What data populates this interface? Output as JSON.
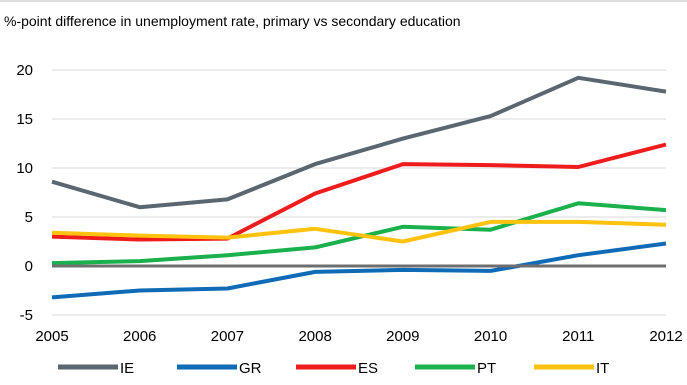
{
  "chart_data": {
    "type": "line",
    "title": "%-point difference in unemployment rate, primary vs secondary education",
    "xlabel": "",
    "ylabel": "",
    "x": [
      "2005",
      "2006",
      "2007",
      "2008",
      "2009",
      "2010",
      "2011",
      "2012"
    ],
    "ylim": [
      -5,
      20
    ],
    "yticks": [
      "-5",
      "0",
      "5",
      "10",
      "15",
      "20"
    ],
    "grid": "horizontal",
    "legend_position": "bottom",
    "series": [
      {
        "name": "IE",
        "color": "#5a6770",
        "values": [
          8.6,
          6.0,
          6.8,
          10.4,
          13.0,
          15.3,
          19.2,
          17.8
        ]
      },
      {
        "name": "GR",
        "color": "#0f6bb6",
        "values": [
          -3.2,
          -2.5,
          -2.3,
          -0.6,
          -0.4,
          -0.5,
          1.1,
          2.3
        ]
      },
      {
        "name": "ES",
        "color": "#ee1c1c",
        "values": [
          3.0,
          2.7,
          2.8,
          7.4,
          10.4,
          10.3,
          10.1,
          12.4
        ]
      },
      {
        "name": "PT",
        "color": "#1ab04c",
        "values": [
          0.3,
          0.5,
          1.1,
          1.9,
          4.0,
          3.7,
          6.4,
          5.7
        ]
      },
      {
        "name": "IT",
        "color": "#ffc20e",
        "values": [
          3.4,
          3.1,
          2.9,
          3.8,
          2.5,
          4.5,
          4.5,
          4.2
        ]
      }
    ]
  }
}
